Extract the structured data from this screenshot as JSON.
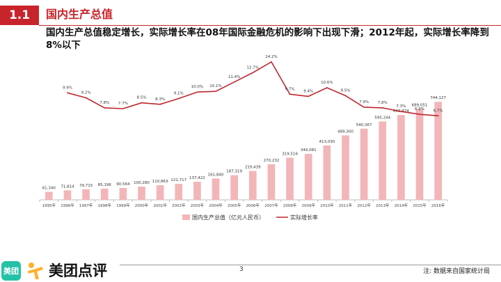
{
  "header": {
    "section_number": "1.1",
    "title": "国内生产总值",
    "subtitle": "国内生产总值稳定增长，实际增长率在08年国际金融危机的影响下出现下滑；2012年起，实际增长率降到8%以下"
  },
  "colors": {
    "accent": "#c8242b",
    "bar": "#f2b6b8",
    "line": "#c0272d",
    "logo_green": "#26c2a7",
    "logo_orange": "#ffb02a"
  },
  "chart_data": {
    "type": "bar+line",
    "categories": [
      "1995年",
      "1996年",
      "1997年",
      "1998年",
      "1999年",
      "2000年",
      "2001年",
      "2002年",
      "2003年",
      "2004年",
      "2005年",
      "2006年",
      "2007年",
      "2008年",
      "2009年",
      "2010年",
      "2011年",
      "2012年",
      "2013年",
      "2014年",
      "2015年",
      "2016年"
    ],
    "series": [
      {
        "name": "国内生产总值（亿元人民币）",
        "kind": "bar",
        "values": [
          61340,
          71814,
          79715,
          85196,
          90564,
          100280,
          110863,
          121717,
          137422,
          161840,
          187319,
          219439,
          270232,
          319516,
          349081,
          413030,
          489300,
          540367,
          595244,
          643974,
          689051,
          744127
        ],
        "labels": [
          "61,340",
          "71,814",
          "79,715",
          "85,196",
          "90,564",
          "100,280",
          "110,863",
          "121,717",
          "137,422",
          "161,840",
          "187,319",
          "219,439",
          "270,232",
          "319,516",
          "349,081",
          "413,030",
          "489,300",
          "540,367",
          "595,244",
          "643,974",
          "689,051",
          "744,127"
        ]
      },
      {
        "name": "实际增长率",
        "kind": "line",
        "values": [
          null,
          9.9,
          9.2,
          7.8,
          7.7,
          8.5,
          8.3,
          9.1,
          10.0,
          10.1,
          11.4,
          12.7,
          14.2,
          9.7,
          9.4,
          10.6,
          9.5,
          7.9,
          7.8,
          7.3,
          6.9,
          6.7
        ],
        "labels": [
          "",
          "9.9%",
          "9.2%",
          "7.8%",
          "7.7%",
          "8.5%",
          "8.3%",
          "9.1%",
          "10.0%",
          "10.1%",
          "11.4%",
          "12.7%",
          "14.2%",
          "9.7%",
          "9.4%",
          "10.6%",
          "9.5%",
          "7.9%",
          "7.8%",
          "7.3%",
          "6.9%",
          "6.7%"
        ]
      }
    ],
    "bar_ylim": [
      0,
      1200000
    ],
    "line_ylim": [
      -5,
      17
    ],
    "legend_position": "bottom-center"
  },
  "footer": {
    "logo_icon_text": "美团",
    "logo_text": "美团点评",
    "page_number": "3",
    "source_note": "注: 数据来自国家统计局"
  }
}
